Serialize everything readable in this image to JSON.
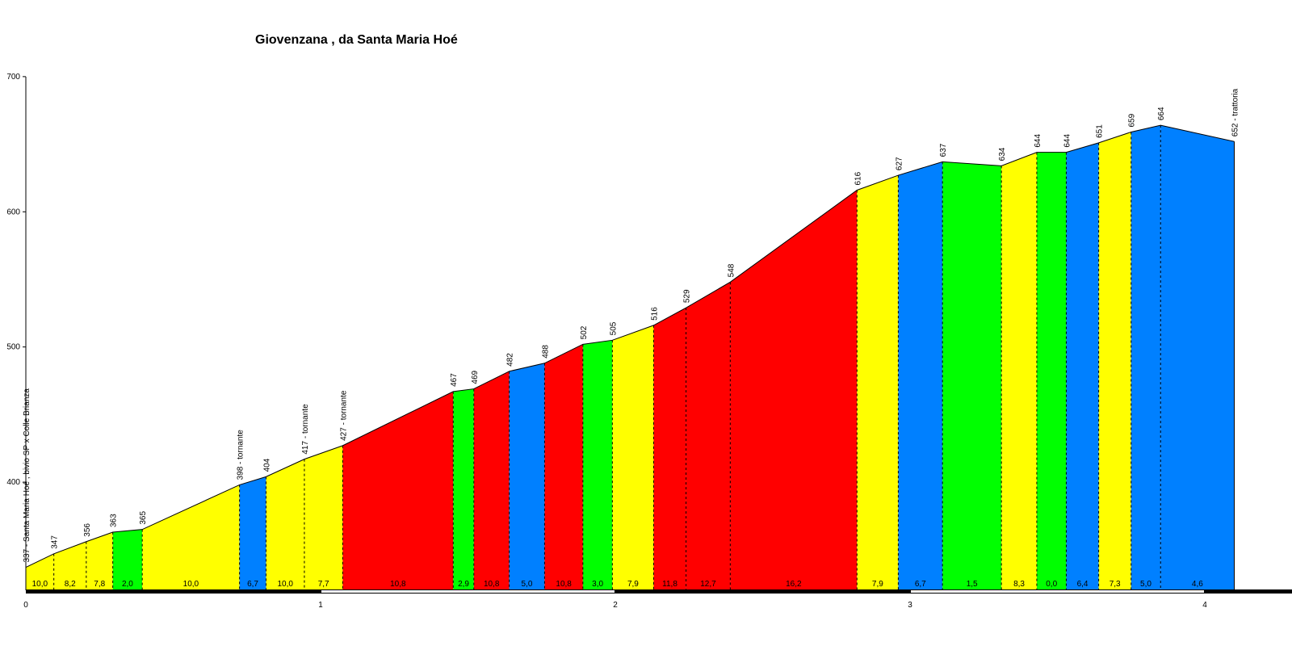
{
  "chart_data": {
    "type": "area",
    "title": "Giovenzana , da Santa Maria Hoé",
    "xlabel": "",
    "ylabel": "",
    "xlim": [
      0,
      4.3
    ],
    "ylim": [
      320,
      700
    ],
    "xticks": [
      "0",
      "1",
      "2",
      "3",
      "4"
    ],
    "yticks": [
      "400",
      "500",
      "600",
      "700"
    ],
    "points": [
      {
        "x": 0.0,
        "y": 337,
        "label": "337 - Santa Maria Hoé , bivio SP x Colle Brianza"
      },
      {
        "x": 0.095,
        "y": 347,
        "label": "347"
      },
      {
        "x": 0.205,
        "y": 356,
        "label": "356"
      },
      {
        "x": 0.295,
        "y": 363,
        "label": "363"
      },
      {
        "x": 0.395,
        "y": 365,
        "label": "365"
      },
      {
        "x": 0.725,
        "y": 398,
        "label": "398 - tornante"
      },
      {
        "x": 0.815,
        "y": 404,
        "label": "404"
      },
      {
        "x": 0.945,
        "y": 417,
        "label": "417 - tornante"
      },
      {
        "x": 1.075,
        "y": 427,
        "label": "427 - tornante"
      },
      {
        "x": 1.45,
        "y": 467,
        "label": "467"
      },
      {
        "x": 1.52,
        "y": 469,
        "label": "469"
      },
      {
        "x": 1.64,
        "y": 482,
        "label": "482"
      },
      {
        "x": 1.76,
        "y": 488,
        "label": "488"
      },
      {
        "x": 1.89,
        "y": 502,
        "label": "502"
      },
      {
        "x": 1.99,
        "y": 505,
        "label": "505"
      },
      {
        "x": 2.13,
        "y": 516,
        "label": "516"
      },
      {
        "x": 2.24,
        "y": 529,
        "label": "529"
      },
      {
        "x": 2.39,
        "y": 548,
        "label": "548"
      },
      {
        "x": 2.82,
        "y": 616,
        "label": "616"
      },
      {
        "x": 2.96,
        "y": 627,
        "label": "627"
      },
      {
        "x": 3.11,
        "y": 637,
        "label": "637"
      },
      {
        "x": 3.31,
        "y": 634,
        "label": "634"
      },
      {
        "x": 3.43,
        "y": 644,
        "label": "644"
      },
      {
        "x": 3.53,
        "y": 644,
        "label": "644"
      },
      {
        "x": 3.64,
        "y": 651,
        "label": "651"
      },
      {
        "x": 3.75,
        "y": 659,
        "label": "659"
      },
      {
        "x": 3.85,
        "y": 664,
        "label": "664"
      },
      {
        "x": 4.1,
        "y": 652,
        "label": "652 - trattoria"
      }
    ],
    "segments": [
      {
        "gradient": "10,0",
        "color": "#ffff00"
      },
      {
        "gradient": "8,2",
        "color": "#ffff00"
      },
      {
        "gradient": "7,8",
        "color": "#ffff00"
      },
      {
        "gradient": "2,0",
        "color": "#00ff00"
      },
      {
        "gradient": "10,0",
        "color": "#ffff00"
      },
      {
        "gradient": "6,7",
        "color": "#0080ff"
      },
      {
        "gradient": "10,0",
        "color": "#ffff00"
      },
      {
        "gradient": "7,7",
        "color": "#ffff00"
      },
      {
        "gradient": "10,8",
        "color": "#ff0000"
      },
      {
        "gradient": "2,9",
        "color": "#00ff00"
      },
      {
        "gradient": "10,8",
        "color": "#ff0000"
      },
      {
        "gradient": "5,0",
        "color": "#0080ff"
      },
      {
        "gradient": "10,8",
        "color": "#ff0000"
      },
      {
        "gradient": "3,0",
        "color": "#00ff00"
      },
      {
        "gradient": "7,9",
        "color": "#ffff00"
      },
      {
        "gradient": "11,8",
        "color": "#ff0000"
      },
      {
        "gradient": "12,7",
        "color": "#ff0000"
      },
      {
        "gradient": "16,2",
        "color": "#ff0000"
      },
      {
        "gradient": "7,9",
        "color": "#ffff00"
      },
      {
        "gradient": "6,7",
        "color": "#0080ff"
      },
      {
        "gradient": "1,5",
        "color": "#00ff00"
      },
      {
        "gradient": "8,3",
        "color": "#ffff00"
      },
      {
        "gradient": "0,0",
        "color": "#00ff00"
      },
      {
        "gradient": "6,4",
        "color": "#0080ff"
      },
      {
        "gradient": "7,3",
        "color": "#ffff00"
      },
      {
        "gradient": "5,0",
        "color": "#0080ff"
      },
      {
        "gradient": "4,6",
        "color": "#0080ff"
      }
    ],
    "grid": false,
    "legend": "none"
  }
}
